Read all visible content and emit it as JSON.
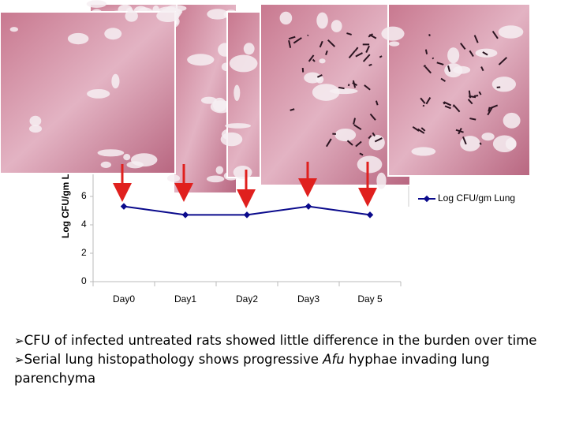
{
  "chart_data": {
    "type": "line",
    "y_label": "Log CFU/gm Lung",
    "categories": [
      "Day0",
      "Day1",
      "Day2",
      "Day3",
      "Day 5"
    ],
    "series": [
      {
        "name": "Log CFU/gm Lung",
        "color": "#0a0a8c",
        "values": [
          5.3,
          4.7,
          4.7,
          5.3,
          4.7
        ]
      }
    ],
    "ylim": [
      0,
      6
    ],
    "yticks": [
      0,
      2,
      4,
      6
    ],
    "grid": false,
    "legend": "right"
  },
  "bullets": [
    {
      "segments": [
        {
          "text": "CFU of infected untreated rats showed little difference in the burden over time",
          "italic": false
        }
      ]
    },
    {
      "segments": [
        {
          "text": "Serial lung histopathology shows progressive ",
          "italic": false
        },
        {
          "text": "Afu",
          "italic": true
        },
        {
          "text": " hyphae invading lung parenchyma",
          "italic": false
        }
      ]
    }
  ]
}
